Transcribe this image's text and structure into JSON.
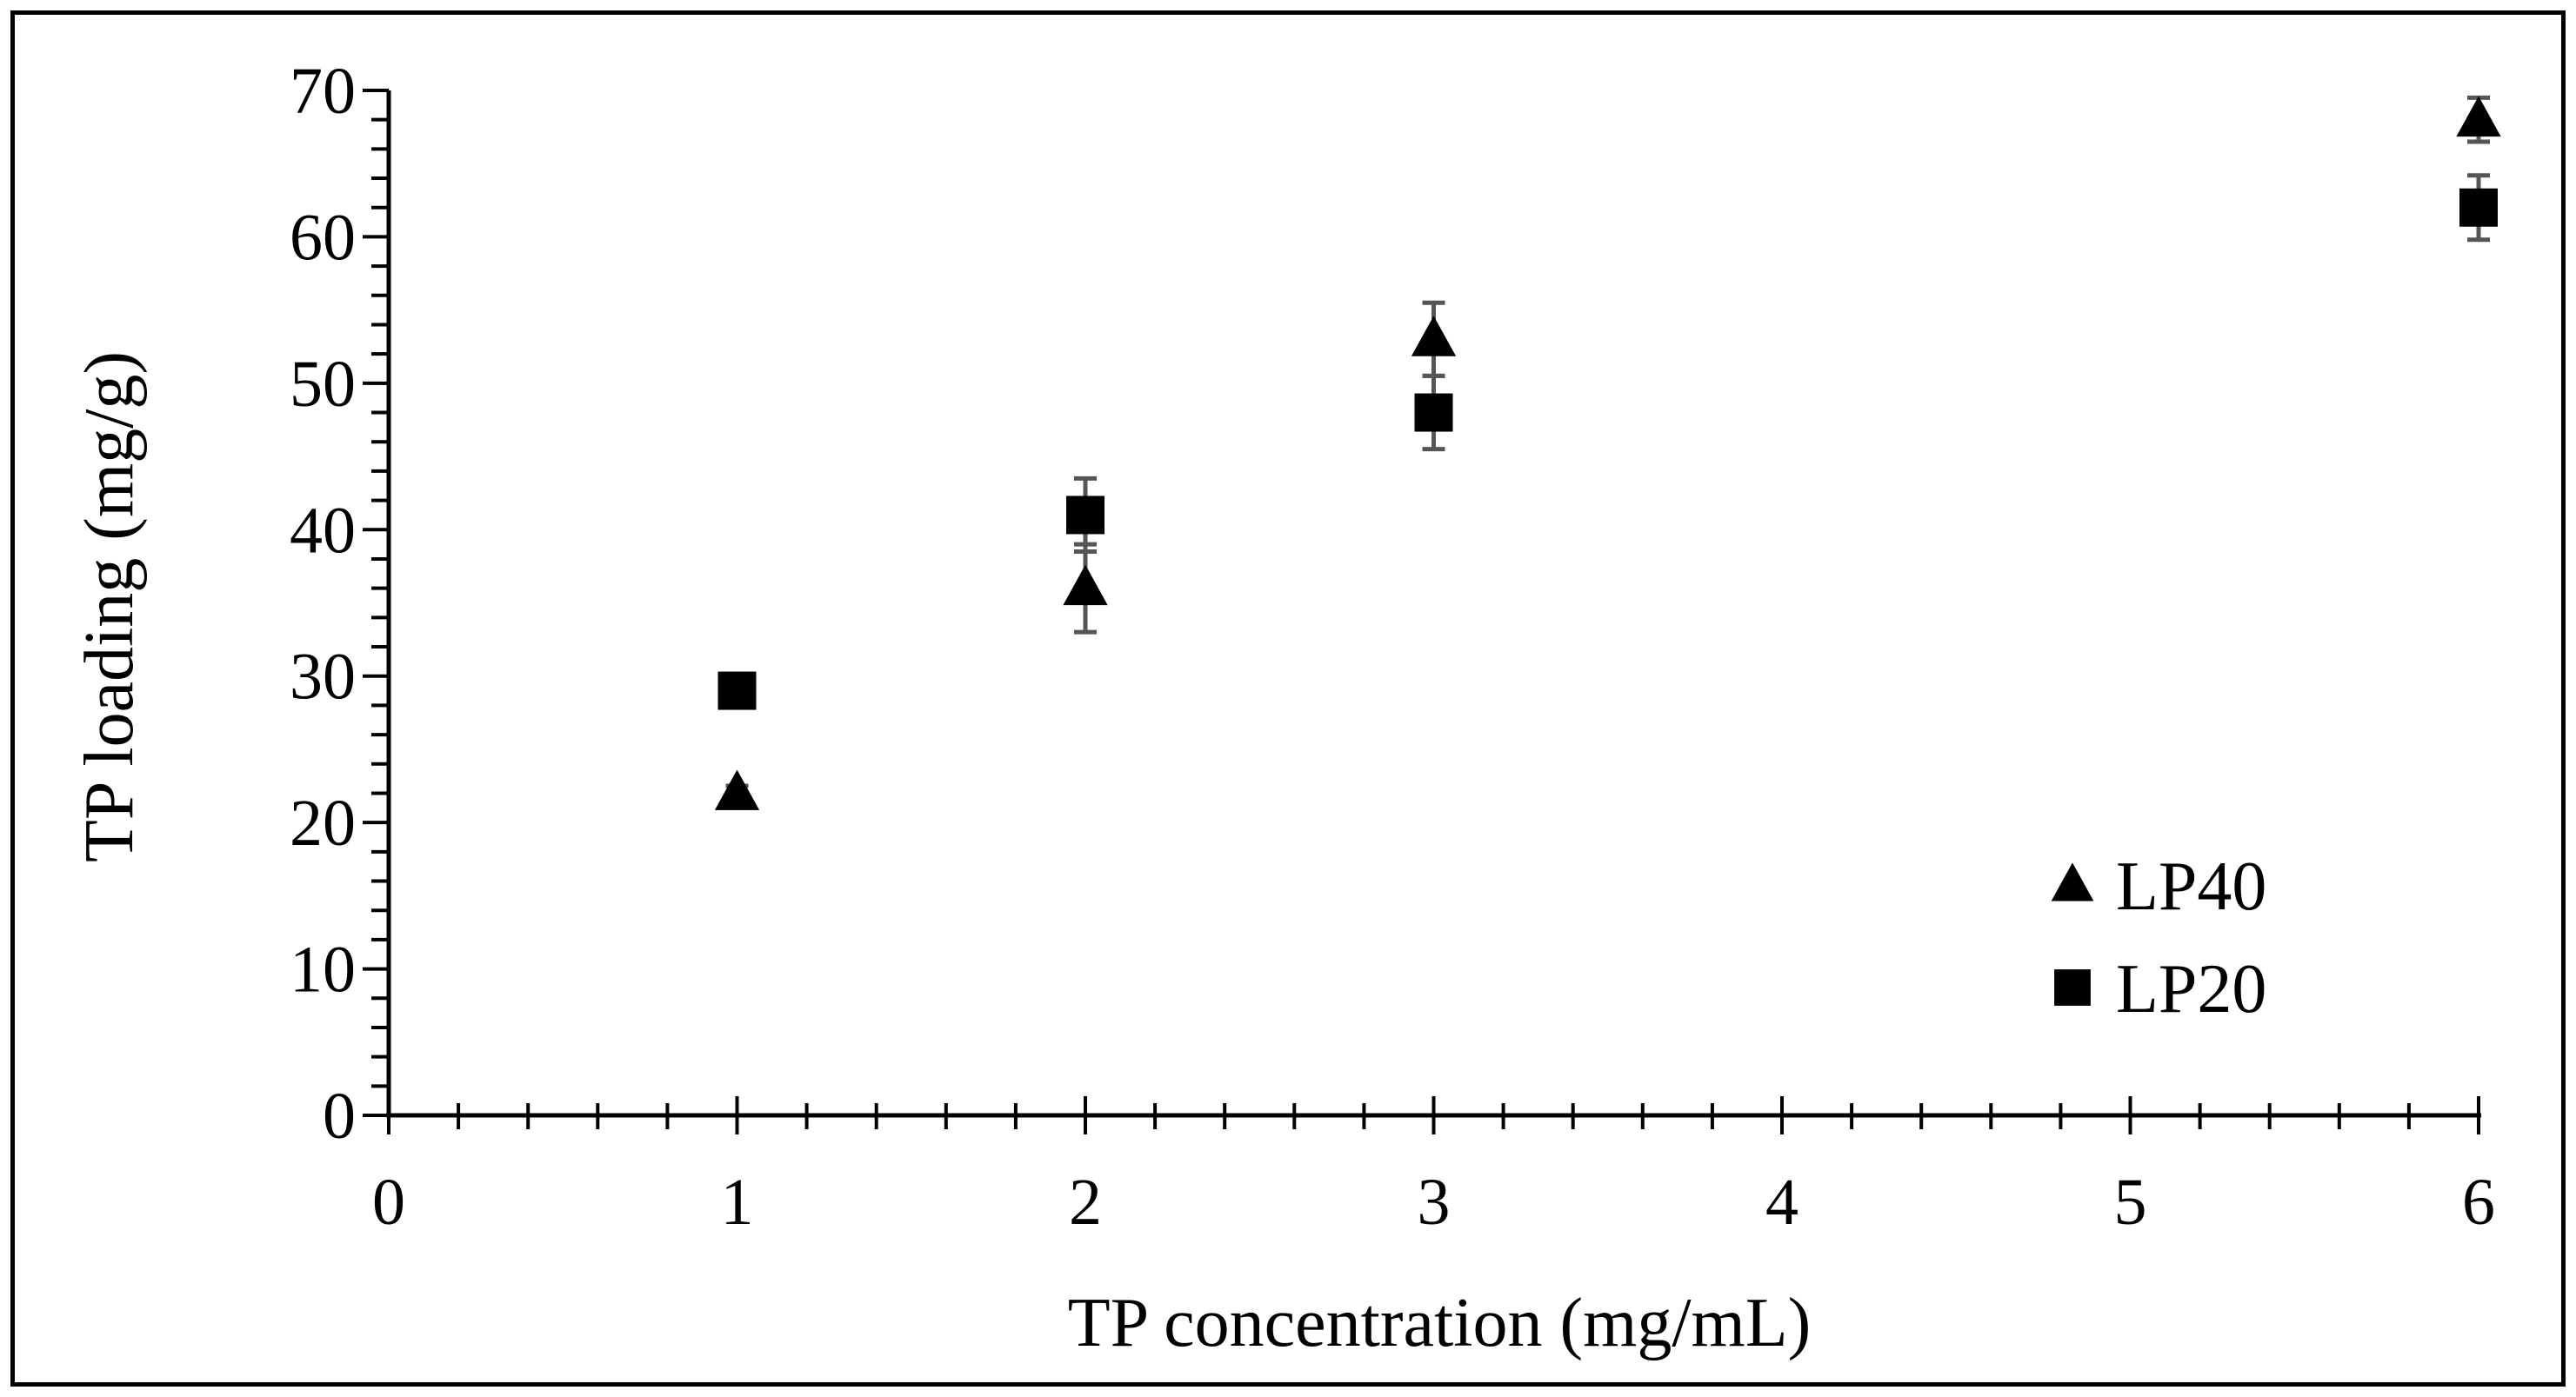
{
  "chart_data": {
    "type": "scatter",
    "title": "",
    "xlabel": "TP concentration (mg/mL)",
    "ylabel": "TP loading (mg/g)",
    "xlim": [
      0,
      6
    ],
    "ylim": [
      0,
      70
    ],
    "x_ticks": [
      0,
      1,
      2,
      3,
      4,
      5,
      6
    ],
    "y_ticks": [
      0,
      10,
      20,
      30,
      40,
      50,
      60,
      70
    ],
    "x_minor_step": 0.2,
    "y_minor_step": 2,
    "grid": false,
    "legend_position": "bottom-right",
    "series": [
      {
        "name": "LP40",
        "marker": "triangle",
        "color": "#000000",
        "x": [
          1,
          2,
          3,
          6
        ],
        "y": [
          22,
          36,
          53,
          68
        ],
        "error": [
          0.5,
          3.0,
          2.5,
          1.5
        ]
      },
      {
        "name": "LP20",
        "marker": "square",
        "color": "#000000",
        "x": [
          1,
          2,
          3,
          6
        ],
        "y": [
          29,
          41,
          48,
          62
        ],
        "error": [
          0.5,
          2.5,
          2.5,
          2.2
        ]
      }
    ],
    "error_bar_color": "#555555"
  }
}
